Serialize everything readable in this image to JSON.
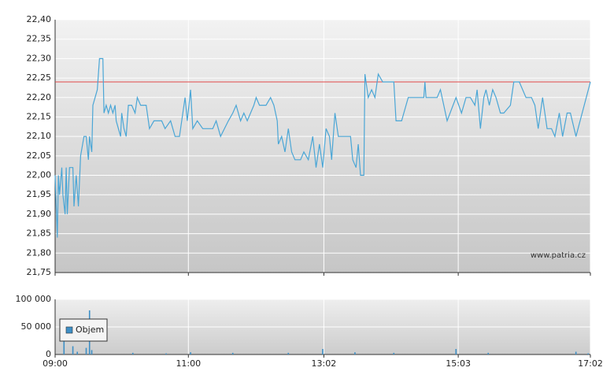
{
  "chart_data": [
    {
      "type": "line",
      "color": "#4aa6d6",
      "xlim": [
        "09:00",
        "17:02"
      ],
      "xticks": [
        "09:00",
        "11:00",
        "13:02",
        "15:03",
        "17:02"
      ],
      "ylim": [
        21.75,
        22.4
      ],
      "yticks": [
        {
          "value": 21.75,
          "label": "21,75"
        },
        {
          "value": 21.8,
          "label": "21,80"
        },
        {
          "value": 21.85,
          "label": "21,85"
        },
        {
          "value": 21.9,
          "label": "21,90"
        },
        {
          "value": 21.95,
          "label": "21,95"
        },
        {
          "value": 22.0,
          "label": "22,00"
        },
        {
          "value": 22.05,
          "label": "22,05"
        },
        {
          "value": 22.1,
          "label": "22,10"
        },
        {
          "value": 22.15,
          "label": "22,15"
        },
        {
          "value": 22.2,
          "label": "22,20"
        },
        {
          "value": 22.25,
          "label": "22,25"
        },
        {
          "value": 22.3,
          "label": "22,30"
        },
        {
          "value": 22.35,
          "label": "22,35"
        },
        {
          "value": 22.4,
          "label": "22,40"
        }
      ],
      "grid": true,
      "reference_line": {
        "value": 22.24,
        "color": "#e04848"
      },
      "annotation": "www.patria.cz",
      "x": [
        "09:00",
        "09:01",
        "09:02",
        "09:03",
        "09:04",
        "09:06",
        "09:07",
        "09:09",
        "09:10",
        "09:11",
        "09:13",
        "09:16",
        "09:17",
        "09:19",
        "09:21",
        "09:23",
        "09:26",
        "09:28",
        "09:30",
        "09:31",
        "09:33",
        "09:34",
        "09:36",
        "09:38",
        "09:40",
        "09:43",
        "09:44",
        "09:46",
        "09:48",
        "09:50",
        "09:52",
        "09:54",
        "09:55",
        "09:57",
        "09:59",
        "10:00",
        "10:02",
        "10:04",
        "10:06",
        "10:09",
        "10:12",
        "10:14",
        "10:17",
        "10:22",
        "10:25",
        "10:29",
        "10:36",
        "10:39",
        "10:44",
        "10:48",
        "10:52",
        "10:57",
        "10:59",
        "11:02",
        "11:04",
        "11:08",
        "11:13",
        "11:22",
        "11:25",
        "11:29",
        "11:36",
        "11:40",
        "11:43",
        "11:47",
        "11:50",
        "11:53",
        "11:56",
        "11:59",
        "12:01",
        "12:04",
        "12:10",
        "12:14",
        "12:17",
        "12:20",
        "12:21",
        "12:24",
        "12:27",
        "12:30",
        "12:33",
        "12:36",
        "12:41",
        "12:44",
        "12:48",
        "12:52",
        "12:55",
        "12:58",
        "13:01",
        "13:04",
        "13:07",
        "13:09",
        "13:12",
        "13:15",
        "13:26",
        "13:28",
        "13:31",
        "13:33",
        "13:35",
        "13:38",
        "13:39",
        "13:42",
        "13:45",
        "13:48",
        "13:51",
        "13:55",
        "14:05",
        "14:07",
        "14:12",
        "14:18",
        "14:26",
        "14:32",
        "14:33",
        "14:34",
        "14:44",
        "14:47",
        "14:53",
        "15:01",
        "15:06",
        "15:10",
        "15:14",
        "15:18",
        "15:20",
        "15:23",
        "15:26",
        "15:28",
        "15:31",
        "15:34",
        "15:37",
        "15:41",
        "15:44",
        "15:50",
        "15:53",
        "15:58",
        "16:04",
        "16:09",
        "16:12",
        "16:15",
        "16:19",
        "16:23",
        "16:27",
        "16:30",
        "16:34",
        "16:37",
        "16:41",
        "16:44",
        "16:49",
        "17:02"
      ],
      "values": [
        22.0,
        21.92,
        21.84,
        22.0,
        21.95,
        22.02,
        21.95,
        21.9,
        22.02,
        21.9,
        22.02,
        22.02,
        21.92,
        22.0,
        21.92,
        22.05,
        22.1,
        22.1,
        22.04,
        22.1,
        22.06,
        22.18,
        22.2,
        22.22,
        22.3,
        22.3,
        22.16,
        22.18,
        22.16,
        22.18,
        22.16,
        22.18,
        22.14,
        22.12,
        22.1,
        22.16,
        22.12,
        22.1,
        22.18,
        22.18,
        22.16,
        22.2,
        22.18,
        22.18,
        22.12,
        22.14,
        22.14,
        22.12,
        22.14,
        22.1,
        22.1,
        22.2,
        22.14,
        22.22,
        22.12,
        22.14,
        22.12,
        22.12,
        22.14,
        22.1,
        22.14,
        22.16,
        22.18,
        22.14,
        22.16,
        22.14,
        22.16,
        22.18,
        22.2,
        22.18,
        22.18,
        22.2,
        22.18,
        22.14,
        22.08,
        22.1,
        22.06,
        22.12,
        22.06,
        22.04,
        22.04,
        22.06,
        22.04,
        22.1,
        22.02,
        22.08,
        22.02,
        22.12,
        22.1,
        22.04,
        22.16,
        22.1,
        22.1,
        22.04,
        22.02,
        22.08,
        22.0,
        22.0,
        22.26,
        22.2,
        22.22,
        22.2,
        22.26,
        22.24,
        22.24,
        22.14,
        22.14,
        22.2,
        22.2,
        22.2,
        22.24,
        22.2,
        22.2,
        22.22,
        22.14,
        22.2,
        22.16,
        22.2,
        22.2,
        22.18,
        22.22,
        22.12,
        22.2,
        22.22,
        22.18,
        22.22,
        22.2,
        22.16,
        22.16,
        22.18,
        22.24,
        22.24,
        22.2,
        22.2,
        22.18,
        22.12,
        22.2,
        22.12,
        22.12,
        22.1,
        22.16,
        22.1,
        22.16,
        22.16,
        22.1,
        22.24
      ]
    },
    {
      "type": "bar",
      "xlim": [
        "09:00",
        "17:02"
      ],
      "xticks": [
        "09:00",
        "11:00",
        "13:02",
        "15:03",
        "17:02"
      ],
      "ylim": [
        0,
        100000
      ],
      "yticks": [
        0,
        {
          "value": 50000,
          "label": "50 000"
        },
        {
          "value": 100000,
          "label": "100 000"
        }
      ],
      "grid": true,
      "legend": "upper left",
      "x": [
        "09:08",
        "09:16",
        "09:20",
        "09:28",
        "09:31",
        "09:33",
        "10:10",
        "10:40",
        "11:02",
        "11:40",
        "12:30",
        "13:01",
        "13:30",
        "14:05",
        "15:01",
        "15:30",
        "16:49",
        "17:00"
      ],
      "series": [
        {
          "name": "Objem",
          "color": "#3d8fc6",
          "values": [
            25000,
            15000,
            5000,
            12000,
            80000,
            8000,
            3000,
            2000,
            4000,
            3000,
            3000,
            10000,
            4000,
            3000,
            10000,
            3000,
            5000,
            2000
          ]
        }
      ]
    }
  ]
}
